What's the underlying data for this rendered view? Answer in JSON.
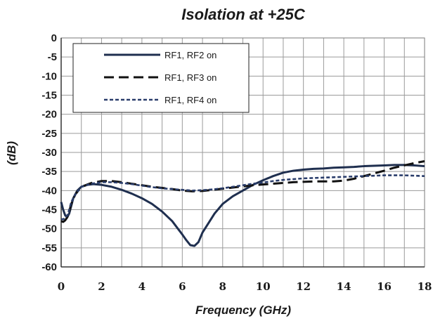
{
  "chart_data": {
    "type": "line",
    "title": "Isolation at +25C",
    "xlabel": "Frequency (GHz)",
    "ylabel": "(dB)",
    "xlim": [
      0,
      18
    ],
    "ylim": [
      -60,
      0
    ],
    "xticks": [
      0,
      2,
      4,
      6,
      8,
      10,
      12,
      14,
      16,
      18
    ],
    "yticks": [
      0,
      -5,
      -10,
      -15,
      -20,
      -25,
      -30,
      -35,
      -40,
      -45,
      -50,
      -55,
      -60
    ],
    "grid": true,
    "legend_position": "top-left",
    "series": [
      {
        "name": "RF1, RF2 on",
        "style": "solid",
        "color": "#1f2f4f",
        "x": [
          0,
          0.1,
          0.2,
          0.3,
          0.4,
          0.5,
          0.6,
          0.8,
          1.0,
          1.3,
          1.6,
          2.0,
          2.5,
          3.0,
          3.5,
          4.0,
          4.5,
          5.0,
          5.5,
          6.0,
          6.2,
          6.4,
          6.6,
          6.8,
          7.0,
          7.3,
          7.6,
          8.0,
          8.5,
          9.0,
          9.5,
          10.0,
          10.5,
          11.0,
          11.5,
          12.0,
          12.5,
          13.0,
          13.5,
          14.0,
          14.5,
          15.0,
          15.5,
          16.0,
          16.5,
          17.0,
          17.5,
          18.0
        ],
        "y": [
          -43,
          -45,
          -46.5,
          -47,
          -46,
          -44,
          -42,
          -40,
          -39,
          -38.5,
          -38.3,
          -38.5,
          -39,
          -39.8,
          -40.8,
          -42,
          -43.5,
          -45.5,
          -48,
          -51.5,
          -53,
          -54.3,
          -54.5,
          -53.5,
          -51,
          -48.5,
          -46,
          -43.5,
          -41.5,
          -40,
          -38.5,
          -37.3,
          -36.2,
          -35.3,
          -34.8,
          -34.5,
          -34.3,
          -34.2,
          -34,
          -33.9,
          -33.8,
          -33.6,
          -33.5,
          -33.4,
          -33.3,
          -33.3,
          -33.4,
          -33.6
        ]
      },
      {
        "name": "RF1, RF3 on",
        "style": "dash",
        "color": "#111111",
        "x": [
          0,
          0.1,
          0.2,
          0.3,
          0.4,
          0.5,
          0.7,
          1.0,
          1.5,
          2.0,
          2.5,
          3.0,
          3.5,
          4.0,
          4.5,
          5.0,
          5.5,
          6.0,
          6.5,
          7.0,
          7.5,
          8.0,
          8.5,
          9.0,
          9.5,
          10.0,
          10.5,
          11.0,
          11.5,
          12.0,
          12.5,
          13.0,
          13.5,
          14.0,
          14.5,
          15.0,
          15.5,
          16.0,
          16.5,
          17.0,
          17.5,
          18.0
        ],
        "y": [
          -48,
          -48.2,
          -47.8,
          -47,
          -45.5,
          -43.5,
          -41,
          -39,
          -38,
          -37.5,
          -37.5,
          -37.8,
          -38.2,
          -38.6,
          -39,
          -39.3,
          -39.6,
          -40,
          -40.2,
          -40.1,
          -39.8,
          -39.5,
          -39.2,
          -38.9,
          -38.6,
          -38.4,
          -38.2,
          -38,
          -37.8,
          -37.7,
          -37.6,
          -37.6,
          -37.6,
          -37.4,
          -36.9,
          -36.2,
          -35.5,
          -34.8,
          -34,
          -33.4,
          -32.8,
          -32.3
        ]
      },
      {
        "name": "RF1, RF4 on",
        "style": "dot",
        "color": "#2a3d6b",
        "x": [
          0,
          0.1,
          0.2,
          0.3,
          0.4,
          0.5,
          0.7,
          1.0,
          1.5,
          2.0,
          2.5,
          3.0,
          3.5,
          4.0,
          4.5,
          5.0,
          5.5,
          6.0,
          6.5,
          7.0,
          7.5,
          8.0,
          8.5,
          9.0,
          9.5,
          10.0,
          10.5,
          11.0,
          11.5,
          12.0,
          12.5,
          13.0,
          13.5,
          14.0,
          14.5,
          15.0,
          15.5,
          16.0,
          16.5,
          17.0,
          17.5,
          18.0
        ],
        "y": [
          -47.5,
          -47.5,
          -47.2,
          -46.5,
          -45,
          -43,
          -41,
          -39,
          -38.2,
          -37.8,
          -37.8,
          -38,
          -38.3,
          -38.7,
          -39.1,
          -39.4,
          -39.6,
          -39.8,
          -40,
          -39.9,
          -39.7,
          -39.4,
          -39.0,
          -38.6,
          -38.2,
          -37.9,
          -37.5,
          -37.2,
          -37,
          -36.8,
          -36.7,
          -36.6,
          -36.5,
          -36.4,
          -36.3,
          -36.2,
          -36.1,
          -36,
          -36,
          -36,
          -36.1,
          -36.2
        ]
      }
    ]
  }
}
